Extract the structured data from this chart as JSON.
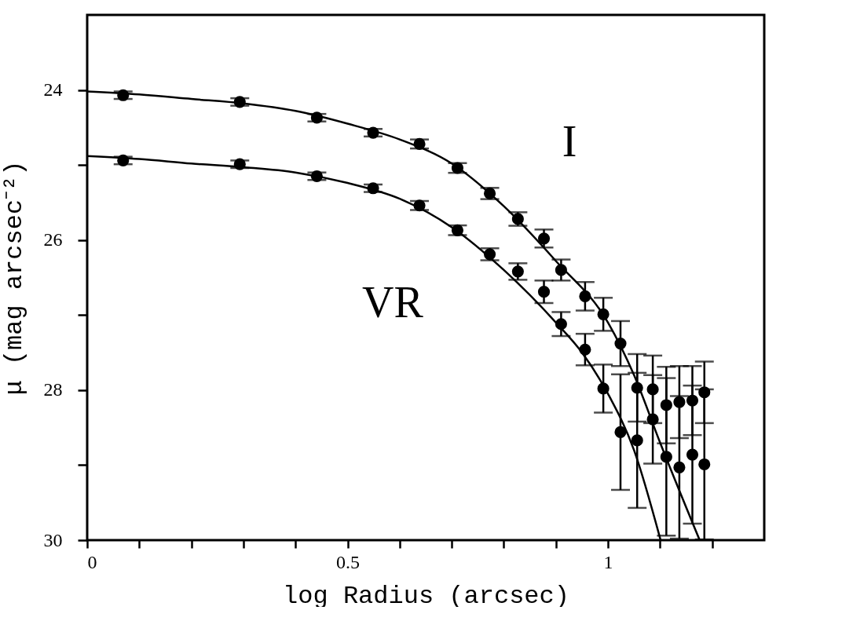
{
  "chart_data": {
    "type": "scatter",
    "xlabel": "log Radius (arcsec)",
    "ylabel": "μ (mag arcsec⁻²)",
    "xlim": [
      0,
      1.3
    ],
    "ylim": [
      30,
      23
    ],
    "xticks": [
      0,
      {
        "value": 0.1,
        "label": null
      },
      {
        "value": 0.2,
        "label": null
      },
      {
        "value": 0.3,
        "label": null
      },
      {
        "value": 0.4,
        "label": null
      },
      0.5,
      {
        "value": 0.6,
        "label": null
      },
      {
        "value": 0.7,
        "label": null
      },
      {
        "value": 0.8,
        "label": null
      },
      {
        "value": 0.9,
        "label": null
      },
      1,
      {
        "value": 1.1,
        "label": null
      },
      {
        "value": 1.2,
        "label": null
      }
    ],
    "yticks": [
      24,
      {
        "value": 25,
        "label": null
      },
      26,
      {
        "value": 27,
        "label": null
      },
      28,
      {
        "value": 29,
        "label": null
      },
      30
    ],
    "grid": false,
    "series": [
      {
        "type": "line",
        "color": "#000000",
        "line_style": "solid",
        "marker": "none",
        "x": [
          0,
          0.1,
          0.2,
          0.3,
          0.4,
          0.5,
          0.6,
          0.7,
          0.8,
          0.9,
          1.0,
          1.05,
          1.1,
          1.176
        ],
        "values": [
          24.02,
          24.06,
          24.12,
          24.18,
          24.28,
          24.45,
          24.66,
          24.98,
          25.55,
          26.28,
          27.1,
          27.8,
          28.7,
          30
        ]
      },
      {
        "type": "line",
        "color": "#000000",
        "line_style": "solid",
        "marker": "none",
        "x": [
          0,
          0.1,
          0.2,
          0.3,
          0.4,
          0.5,
          0.6,
          0.7,
          0.8,
          0.9,
          0.95,
          1.0,
          1.05,
          1.101
        ],
        "values": [
          24.88,
          24.92,
          24.98,
          25.03,
          25.1,
          25.24,
          25.45,
          25.83,
          26.4,
          27.1,
          27.5,
          28.05,
          28.8,
          30
        ]
      },
      {
        "color": "#000000",
        "marker": "circle",
        "x": [
          0.069,
          0.293,
          0.441,
          0.549,
          0.638,
          0.711,
          0.773,
          0.827,
          0.877,
          0.91,
          0.956,
          0.991
        ],
        "values": [
          24.07,
          24.16,
          24.37,
          24.57,
          24.72,
          25.04,
          25.38,
          25.72,
          25.98,
          26.4,
          26.75,
          26.99
        ],
        "errors": [
          0.05,
          0.05,
          0.05,
          0.05,
          0.06,
          0.065,
          0.075,
          0.09,
          0.12,
          0.14,
          0.19,
          0.22
        ]
      },
      {
        "color": "#000000",
        "marker": "circle",
        "x": [
          0.069,
          0.293,
          0.441,
          0.549,
          0.638,
          0.711,
          0.773,
          0.827,
          0.877,
          0.91,
          0.956,
          0.991
        ],
        "values": [
          24.94,
          24.99,
          25.15,
          25.31,
          25.54,
          25.87,
          26.19,
          26.42,
          26.69,
          27.12,
          27.46,
          27.98
        ],
        "errors": [
          0.05,
          0.05,
          0.05,
          0.05,
          0.06,
          0.065,
          0.08,
          0.11,
          0.15,
          0.16,
          0.21,
          0.32
        ]
      },
      {
        "color": "#000000",
        "marker": "circle",
        "x": [
          1.024,
          1.056,
          1.086,
          1.112,
          1.137,
          1.162,
          1.185
        ],
        "values": [
          27.38,
          27.97,
          27.99,
          28.2,
          28.16,
          28.14,
          28.03
        ],
        "errors": [
          0.3,
          0.45,
          0.45,
          0.51,
          0.48,
          0.46,
          0.41
        ]
      },
      {
        "color": "#000000",
        "marker": "circle",
        "x": [
          1.024,
          1.056,
          1.086,
          1.112,
          1.137,
          1.162,
          1.185
        ],
        "values": [
          28.56,
          28.67,
          28.39,
          28.89,
          29.03,
          28.86,
          28.99
        ],
        "errors": [
          0.77,
          0.9,
          0.59,
          1.05,
          0.95,
          0.92,
          1.0
        ]
      }
    ],
    "annotations": [
      "I",
      "VR"
    ]
  }
}
